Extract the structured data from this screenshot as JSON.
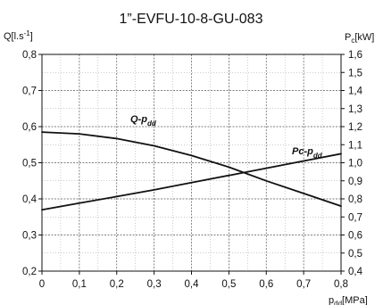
{
  "chart_data": {
    "type": "line",
    "title": "1”-EVFU-10-8-GU-083",
    "xlabel": "p",
    "xlabel_sub": "dd",
    "xlabel_unit": "[MPa]",
    "ylabel": "Q[l.s",
    "ylabel_sup": "-1",
    "ylabel_end": "]",
    "y2label": "P",
    "y2label_sub": "c",
    "y2label_unit": "[kW]",
    "xlim": [
      0,
      0.8
    ],
    "ylim": [
      0.2,
      0.8
    ],
    "y2lim": [
      0.4,
      1.6
    ],
    "grid": true,
    "x_ticks": [
      "0",
      "0,1",
      "0,2",
      "0,3",
      "0,4",
      "0,5",
      "0,6",
      "0,7",
      "0,8"
    ],
    "y_ticks": [
      "0,2",
      "0,3",
      "0,4",
      "0,5",
      "0,6",
      "0,7",
      "0,8"
    ],
    "y2_ticks": [
      "0,4",
      "0,5",
      "0,6",
      "0,7",
      "0,8",
      "0,9",
      "1,0",
      "1,1",
      "1,2",
      "1,3",
      "1,4",
      "1,5",
      "1,6"
    ],
    "series": [
      {
        "name": "Q-p",
        "name_sub": "dd",
        "axis": "left",
        "x": [
          0,
          0.1,
          0.2,
          0.3,
          0.4,
          0.5,
          0.6,
          0.7,
          0.8
        ],
        "y": [
          0.585,
          0.58,
          0.567,
          0.547,
          0.52,
          0.488,
          0.45,
          0.415,
          0.38
        ]
      },
      {
        "name": "Pc-p",
        "name_sub": "dd",
        "axis": "right",
        "x": [
          0,
          0.1,
          0.2,
          0.3,
          0.4,
          0.5,
          0.6,
          0.7,
          0.8
        ],
        "y": [
          0.74,
          0.777,
          0.813,
          0.85,
          0.89,
          0.93,
          0.97,
          1.01,
          1.05
        ]
      }
    ]
  }
}
